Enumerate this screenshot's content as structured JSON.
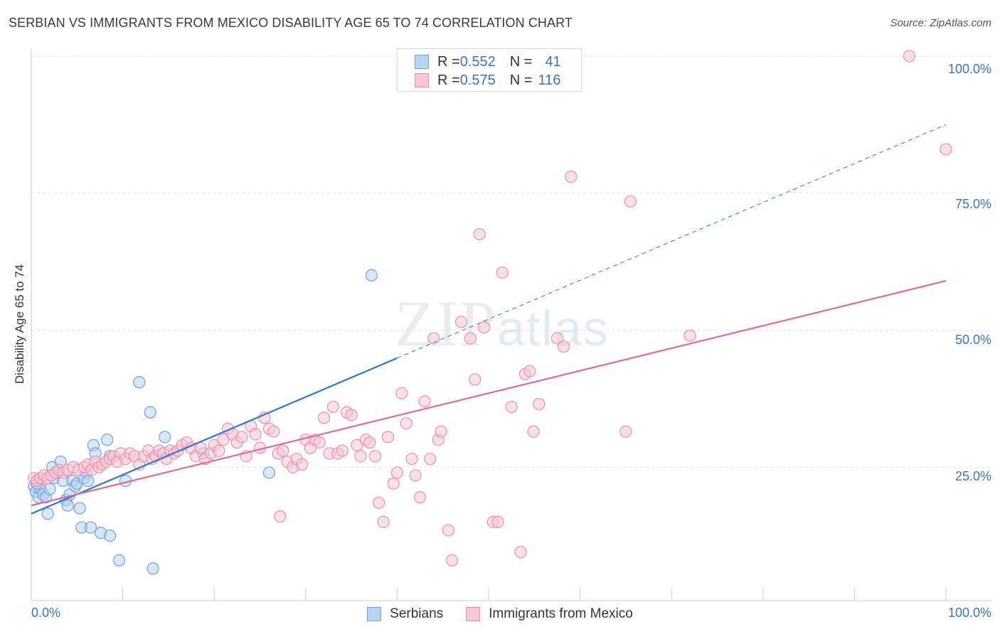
{
  "header": {
    "title": "SERBIAN VS IMMIGRANTS FROM MEXICO DISABILITY AGE 65 TO 74 CORRELATION CHART",
    "source": "Source: ZipAtlas.com"
  },
  "legend_top": {
    "rows": [
      {
        "r_label": "R = ",
        "r_value": "0.552",
        "n_label": "N = ",
        "n_value": "41"
      },
      {
        "r_label": "R = ",
        "r_value": "0.575",
        "n_label": "N = ",
        "n_value": "116"
      }
    ]
  },
  "watermark": {
    "zip": "ZIP",
    "atlas": "atlas"
  },
  "colors": {
    "serbians": "#6fa0e0",
    "serbians_line": "#2f74d0",
    "mexico": "#ec8fac",
    "mexico_line": "#e06a92",
    "tick_text": "#3a72c6"
  },
  "chart_data": {
    "type": "scatter",
    "title": "SERBIAN VS IMMIGRANTS FROM MEXICO DISABILITY AGE 65 TO 74 CORRELATION CHART",
    "xlabel": "",
    "ylabel": "Disability Age 65 to 74",
    "xlim": [
      0,
      100
    ],
    "ylim": [
      0,
      100
    ],
    "x_tick_labels": [
      "0.0%",
      "100.0%"
    ],
    "y_tick_labels": [
      "25.0%",
      "50.0%",
      "75.0%",
      "100.0%"
    ],
    "y_ticks": [
      25,
      50,
      75,
      100
    ],
    "grid": true,
    "legend_position": "top-center",
    "series": [
      {
        "name": "Serbians",
        "color": "#6fa0e0",
        "trend": {
          "x0": 0,
          "y0": 16.5,
          "x1": 100,
          "y1": 87.5,
          "solid_until": 40
        },
        "points": [
          [
            0.3,
            21.5
          ],
          [
            0.5,
            20.5
          ],
          [
            0.8,
            19.5
          ],
          [
            1.0,
            21.0
          ],
          [
            1.3,
            20.0
          ],
          [
            1.6,
            19.5
          ],
          [
            1.8,
            16.5
          ],
          [
            2.0,
            21.0
          ],
          [
            2.3,
            25.0
          ],
          [
            2.5,
            23.0
          ],
          [
            2.8,
            24.0
          ],
          [
            3.2,
            26.0
          ],
          [
            3.5,
            22.5
          ],
          [
            3.8,
            19.0
          ],
          [
            4.0,
            18.0
          ],
          [
            4.2,
            20.0
          ],
          [
            4.5,
            22.5
          ],
          [
            4.8,
            21.5
          ],
          [
            5.0,
            22.0
          ],
          [
            5.3,
            17.5
          ],
          [
            5.5,
            14.0
          ],
          [
            5.8,
            23.0
          ],
          [
            6.0,
            24.0
          ],
          [
            6.2,
            22.5
          ],
          [
            6.5,
            14.0
          ],
          [
            6.8,
            29.0
          ],
          [
            7.0,
            27.5
          ],
          [
            7.6,
            13.0
          ],
          [
            8.3,
            30.0
          ],
          [
            8.6,
            27.0
          ],
          [
            8.6,
            12.5
          ],
          [
            9.6,
            8.0
          ],
          [
            10.3,
            22.5
          ],
          [
            11.8,
            40.5
          ],
          [
            13.0,
            35.0
          ],
          [
            13.3,
            6.5
          ],
          [
            14.6,
            30.5
          ],
          [
            18.8,
            27.5
          ],
          [
            26.0,
            24.0
          ],
          [
            37.2,
            60.0
          ],
          [
            0.6,
            22.0
          ]
        ]
      },
      {
        "name": "Immigrants from Mexico",
        "color": "#ec8fac",
        "trend": {
          "x0": 0,
          "y0": 18.0,
          "x1": 100,
          "y1": 59.0
        },
        "points": [
          [
            0.3,
            23.0
          ],
          [
            0.6,
            22.5
          ],
          [
            1.0,
            23.0
          ],
          [
            1.4,
            23.5
          ],
          [
            1.8,
            23.0
          ],
          [
            2.2,
            23.5
          ],
          [
            2.6,
            24.0
          ],
          [
            3.0,
            24.5
          ],
          [
            3.5,
            24.0
          ],
          [
            4.0,
            24.5
          ],
          [
            4.6,
            25.0
          ],
          [
            5.2,
            24.5
          ],
          [
            5.8,
            25.0
          ],
          [
            6.2,
            25.5
          ],
          [
            6.6,
            24.5
          ],
          [
            7.0,
            26.0
          ],
          [
            7.4,
            25.0
          ],
          [
            7.8,
            25.5
          ],
          [
            8.2,
            26.0
          ],
          [
            8.6,
            26.5
          ],
          [
            9.0,
            27.0
          ],
          [
            9.4,
            26.0
          ],
          [
            9.8,
            27.5
          ],
          [
            10.3,
            26.5
          ],
          [
            10.8,
            27.5
          ],
          [
            11.3,
            27.0
          ],
          [
            11.8,
            25.5
          ],
          [
            12.3,
            27.0
          ],
          [
            12.8,
            28.0
          ],
          [
            13.2,
            26.5
          ],
          [
            13.6,
            27.0
          ],
          [
            14.0,
            28.0
          ],
          [
            14.4,
            27.5
          ],
          [
            14.8,
            26.5
          ],
          [
            15.2,
            28.0
          ],
          [
            15.6,
            27.5
          ],
          [
            16.0,
            28.0
          ],
          [
            16.5,
            29.0
          ],
          [
            17.0,
            29.5
          ],
          [
            17.5,
            28.5
          ],
          [
            18.0,
            27.0
          ],
          [
            18.5,
            28.5
          ],
          [
            19.0,
            26.5
          ],
          [
            19.6,
            27.5
          ],
          [
            20.0,
            29.0
          ],
          [
            20.5,
            28.0
          ],
          [
            21.0,
            30.0
          ],
          [
            21.5,
            32.0
          ],
          [
            22.0,
            31.0
          ],
          [
            22.5,
            29.5
          ],
          [
            23.0,
            30.5
          ],
          [
            23.5,
            27.0
          ],
          [
            24.0,
            32.5
          ],
          [
            24.5,
            31.0
          ],
          [
            25.0,
            28.5
          ],
          [
            25.5,
            34.0
          ],
          [
            26.0,
            32.0
          ],
          [
            26.5,
            31.5
          ],
          [
            27.0,
            27.5
          ],
          [
            27.5,
            28.0
          ],
          [
            28.0,
            26.0
          ],
          [
            28.6,
            25.0
          ],
          [
            29.0,
            26.5
          ],
          [
            29.6,
            25.5
          ],
          [
            30.0,
            30.0
          ],
          [
            30.5,
            28.5
          ],
          [
            31.0,
            30.0
          ],
          [
            31.5,
            29.5
          ],
          [
            32.0,
            34.0
          ],
          [
            32.6,
            27.5
          ],
          [
            33.0,
            36.0
          ],
          [
            33.5,
            27.5
          ],
          [
            34.0,
            28.0
          ],
          [
            34.5,
            35.0
          ],
          [
            35.0,
            34.5
          ],
          [
            35.6,
            29.0
          ],
          [
            36.0,
            27.0
          ],
          [
            36.6,
            30.0
          ],
          [
            37.0,
            29.5
          ],
          [
            37.6,
            27.0
          ],
          [
            38.0,
            18.5
          ],
          [
            38.5,
            15.0
          ],
          [
            39.0,
            30.5
          ],
          [
            39.6,
            22.0
          ],
          [
            40.0,
            24.0
          ],
          [
            40.5,
            38.5
          ],
          [
            41.0,
            33.0
          ],
          [
            41.6,
            26.5
          ],
          [
            42.0,
            23.5
          ],
          [
            42.5,
            19.5
          ],
          [
            43.0,
            37.0
          ],
          [
            43.6,
            26.5
          ],
          [
            44.0,
            48.5
          ],
          [
            44.5,
            30.0
          ],
          [
            44.8,
            31.5
          ],
          [
            45.6,
            13.5
          ],
          [
            46.0,
            8.0
          ],
          [
            47.0,
            51.5
          ],
          [
            48.0,
            48.5
          ],
          [
            48.5,
            41.0
          ],
          [
            49.0,
            67.5
          ],
          [
            49.5,
            50.5
          ],
          [
            50.5,
            15.0
          ],
          [
            51.0,
            15.0
          ],
          [
            51.5,
            60.5
          ],
          [
            52.5,
            36.0
          ],
          [
            53.5,
            9.5
          ],
          [
            54.0,
            42.0
          ],
          [
            54.5,
            42.5
          ],
          [
            54.9,
            31.5
          ],
          [
            55.5,
            36.5
          ],
          [
            57.5,
            48.5
          ],
          [
            58.2,
            47.0
          ],
          [
            59.0,
            78.0
          ],
          [
            65.0,
            31.5
          ],
          [
            65.5,
            73.5
          ],
          [
            72.0,
            49.0
          ],
          [
            96.0,
            100.0
          ],
          [
            100.0,
            83.0
          ],
          [
            27.2,
            16.0
          ]
        ]
      }
    ]
  },
  "legend_bottom": {
    "items": [
      "Serbians",
      "Immigrants from Mexico"
    ]
  }
}
